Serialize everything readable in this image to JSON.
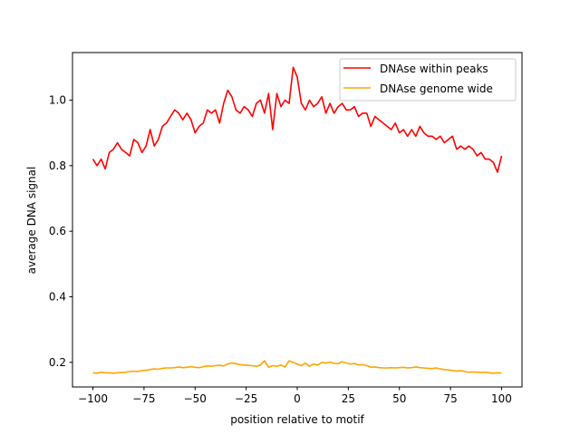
{
  "chart_data": {
    "type": "line",
    "title": "",
    "xlabel": "position relative to motif",
    "ylabel": "average DNA signal",
    "xlim": [
      -110,
      110
    ],
    "ylim": [
      0.125,
      1.145
    ],
    "xticks": [
      -100,
      -75,
      -50,
      -25,
      0,
      25,
      50,
      75,
      100
    ],
    "xtick_labels": [
      "−100",
      "−75",
      "−50",
      "−25",
      "0",
      "25",
      "50",
      "75",
      "100"
    ],
    "yticks": [
      0.2,
      0.4,
      0.6,
      0.8,
      1.0
    ],
    "ytick_labels": [
      "0.2",
      "0.4",
      "0.6",
      "0.8",
      "1.0"
    ],
    "grid": false,
    "legend_position": "top-right",
    "x_start": -100,
    "x_step": 2,
    "series": [
      {
        "name": "DNAse within peaks",
        "color": "#ff0000",
        "values": [
          0.82,
          0.8,
          0.82,
          0.79,
          0.84,
          0.85,
          0.87,
          0.85,
          0.84,
          0.83,
          0.88,
          0.87,
          0.84,
          0.86,
          0.91,
          0.86,
          0.88,
          0.92,
          0.93,
          0.95,
          0.97,
          0.96,
          0.94,
          0.96,
          0.94,
          0.9,
          0.92,
          0.93,
          0.97,
          0.96,
          0.97,
          0.93,
          0.99,
          1.03,
          1.01,
          0.97,
          0.96,
          0.98,
          0.97,
          0.95,
          0.99,
          1.0,
          0.96,
          1.02,
          0.91,
          1.02,
          0.98,
          1.0,
          0.99,
          1.1,
          1.07,
          0.99,
          0.97,
          1.0,
          0.98,
          0.99,
          1.01,
          0.96,
          0.99,
          0.96,
          0.98,
          0.99,
          0.97,
          0.97,
          0.98,
          0.95,
          0.96,
          0.96,
          0.92,
          0.95,
          0.94,
          0.93,
          0.92,
          0.91,
          0.93,
          0.9,
          0.91,
          0.89,
          0.91,
          0.89,
          0.92,
          0.9,
          0.89,
          0.89,
          0.88,
          0.89,
          0.87,
          0.88,
          0.89,
          0.85,
          0.86,
          0.85,
          0.86,
          0.85,
          0.83,
          0.84,
          0.82,
          0.82,
          0.81,
          0.78,
          0.83
        ]
      },
      {
        "name": "DNAse genome wide",
        "color": "#ffa500",
        "values": [
          0.168,
          0.167,
          0.17,
          0.168,
          0.168,
          0.167,
          0.168,
          0.169,
          0.17,
          0.172,
          0.173,
          0.172,
          0.175,
          0.176,
          0.178,
          0.18,
          0.179,
          0.182,
          0.183,
          0.183,
          0.184,
          0.186,
          0.184,
          0.185,
          0.187,
          0.185,
          0.184,
          0.187,
          0.189,
          0.188,
          0.19,
          0.191,
          0.189,
          0.195,
          0.198,
          0.196,
          0.193,
          0.192,
          0.191,
          0.19,
          0.188,
          0.192,
          0.205,
          0.185,
          0.19,
          0.188,
          0.192,
          0.186,
          0.205,
          0.2,
          0.195,
          0.19,
          0.198,
          0.188,
          0.195,
          0.192,
          0.2,
          0.198,
          0.201,
          0.197,
          0.196,
          0.202,
          0.198,
          0.195,
          0.197,
          0.192,
          0.193,
          0.19,
          0.185,
          0.186,
          0.184,
          0.183,
          0.183,
          0.184,
          0.183,
          0.184,
          0.185,
          0.183,
          0.184,
          0.186,
          0.184,
          0.183,
          0.182,
          0.181,
          0.183,
          0.18,
          0.178,
          0.177,
          0.175,
          0.173,
          0.175,
          0.172,
          0.17,
          0.171,
          0.17,
          0.169,
          0.17,
          0.168,
          0.167,
          0.168,
          0.168
        ]
      }
    ]
  }
}
